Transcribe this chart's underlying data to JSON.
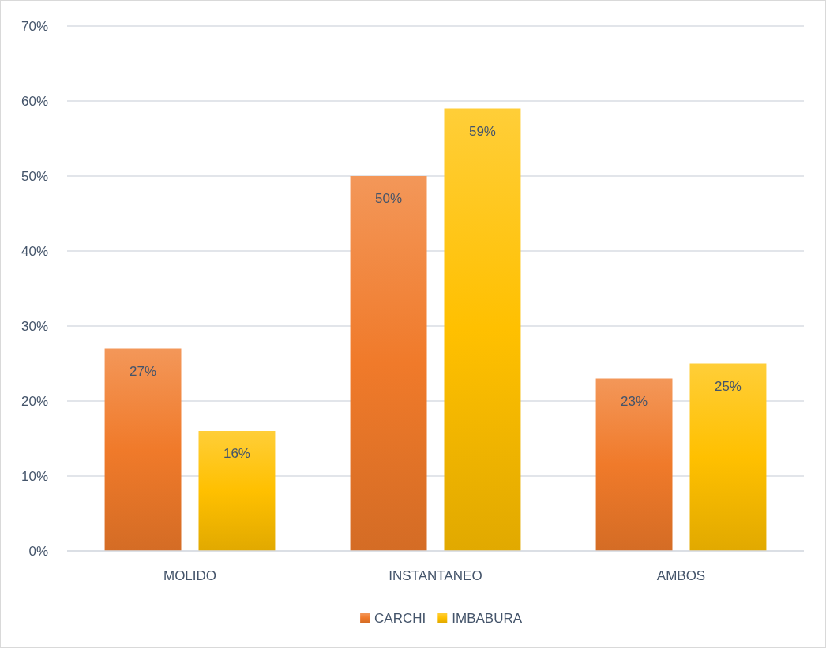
{
  "chart_data": {
    "type": "bar",
    "categories": [
      "MOLIDO",
      "INSTANTANEO",
      "AMBOS"
    ],
    "series": [
      {
        "name": "CARCHI",
        "color": "#f07a2a",
        "values": [
          27,
          50,
          23
        ],
        "value_labels": [
          "27%",
          "50%",
          "23%"
        ]
      },
      {
        "name": "IMBABURA",
        "color": "#ffc000",
        "values": [
          16,
          59,
          25
        ],
        "value_labels": [
          "16%",
          "59%",
          "25%"
        ]
      }
    ],
    "ylim": [
      0,
      70
    ],
    "yticks": [
      {
        "value": 0,
        "label": "0%"
      },
      {
        "value": 10,
        "label": "10%"
      },
      {
        "value": 20,
        "label": "20%"
      },
      {
        "value": 30,
        "label": "30%"
      },
      {
        "value": 40,
        "label": "40%"
      },
      {
        "value": 50,
        "label": "50%"
      },
      {
        "value": 60,
        "label": "60%"
      },
      {
        "value": 70,
        "label": "70%"
      }
    ],
    "grid": "y",
    "legend": "bottom"
  }
}
